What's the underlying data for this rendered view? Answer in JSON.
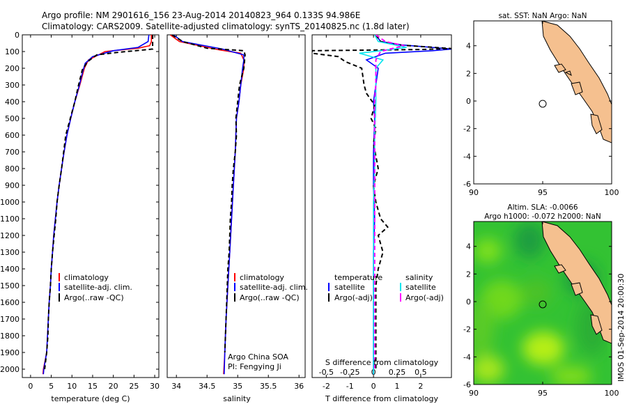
{
  "header": {
    "line1": "Argo profile: NM 2901616_156 23-Aug-2014 20140823_964 0.133S 94.986E",
    "line2": "Climatology: CARS2009. Satellite-adjusted climatology: synTS_20140825.nc (1.8d later)"
  },
  "colors": {
    "climatology": "#ff0000",
    "satellite": "#0000ff",
    "argo": "#000000",
    "satellite_s": "#00e5ee",
    "argo_s": "#ff00ff",
    "land": "#f5c08f"
  },
  "chart_data": [
    {
      "id": "temperature",
      "type": "line",
      "xlabel": "temperature (deg C)",
      "ylabel": "",
      "xlim": [
        -2,
        31
      ],
      "ylim": [
        2050,
        0
      ],
      "xticks": [
        0,
        5,
        10,
        15,
        20,
        25,
        30
      ],
      "yticks": [
        0,
        100,
        200,
        300,
        400,
        500,
        600,
        700,
        800,
        900,
        1000,
        1100,
        1200,
        1300,
        1400,
        1500,
        1600,
        1700,
        1800,
        1900,
        2000
      ],
      "legend": [
        "climatology",
        "satellite-adj. clim.",
        "Argo(..raw -QC)"
      ],
      "series": [
        {
          "name": "climatology",
          "color": "#ff0000",
          "dash": "",
          "points": [
            [
              29.2,
              0
            ],
            [
              29.2,
              40
            ],
            [
              28.8,
              65
            ],
            [
              26,
              80
            ],
            [
              18,
              100
            ],
            [
              14,
              150
            ],
            [
              13,
              200
            ],
            [
              11.9,
              300
            ],
            [
              10.7,
              400
            ],
            [
              9.7,
              500
            ],
            [
              8.8,
              600
            ],
            [
              8.1,
              700
            ],
            [
              7.5,
              800
            ],
            [
              6.9,
              900
            ],
            [
              6.4,
              1000
            ],
            [
              6,
              1100
            ],
            [
              5.6,
              1200
            ],
            [
              5.3,
              1300
            ],
            [
              5,
              1400
            ],
            [
              4.8,
              1500
            ],
            [
              4.5,
              1600
            ],
            [
              4.3,
              1700
            ],
            [
              4.1,
              1800
            ],
            [
              3.9,
              1900
            ],
            [
              3.1,
              2000
            ],
            [
              3,
              2030
            ]
          ]
        },
        {
          "name": "satellite-adj. clim.",
          "color": "#0000ff",
          "dash": "",
          "points": [
            [
              28.6,
              0
            ],
            [
              28.4,
              40
            ],
            [
              26,
              75
            ],
            [
              20,
              95
            ],
            [
              15,
              130
            ],
            [
              13.2,
              170
            ],
            [
              12.6,
              220
            ],
            [
              11.8,
              300
            ],
            [
              10.7,
              400
            ],
            [
              9.7,
              500
            ],
            [
              8.8,
              600
            ],
            [
              8.1,
              700
            ],
            [
              7.5,
              800
            ],
            [
              6.9,
              900
            ],
            [
              6.4,
              1000
            ],
            [
              6,
              1100
            ],
            [
              5.6,
              1200
            ],
            [
              5.3,
              1300
            ],
            [
              5,
              1400
            ],
            [
              4.8,
              1500
            ],
            [
              4.5,
              1600
            ],
            [
              4.3,
              1700
            ],
            [
              4.1,
              1800
            ],
            [
              3.9,
              1900
            ],
            [
              3.2,
              2000
            ],
            [
              3.1,
              2030
            ]
          ]
        },
        {
          "name": "Argo(..raw -QC)",
          "color": "#000000",
          "dash": "6,4",
          "points": [
            [
              29.5,
              0
            ],
            [
              29.5,
              85
            ],
            [
              27.5,
              90
            ],
            [
              21,
              105
            ],
            [
              16,
              120
            ],
            [
              13.8,
              160
            ],
            [
              12.5,
              210
            ],
            [
              11.6,
              300
            ],
            [
              10.7,
              400
            ],
            [
              9.6,
              500
            ],
            [
              8.5,
              600
            ],
            [
              8,
              700
            ],
            [
              7.5,
              800
            ],
            [
              6.9,
              900
            ],
            [
              6.4,
              1000
            ],
            [
              6.1,
              1100
            ],
            [
              5.7,
              1200
            ],
            [
              5.3,
              1300
            ],
            [
              5,
              1400
            ],
            [
              4.8,
              1500
            ],
            [
              4.5,
              1600
            ],
            [
              4.3,
              1700
            ],
            [
              4.2,
              1800
            ],
            [
              3.9,
              1900
            ],
            [
              3.4,
              2000
            ]
          ]
        }
      ]
    },
    {
      "id": "salinity",
      "type": "line",
      "xlabel": "salinity",
      "ylabel": "",
      "xlim": [
        33.85,
        36.1
      ],
      "ylim": [
        2050,
        0
      ],
      "xticks": [
        34,
        34.5,
        35,
        35.5,
        36
      ],
      "legend": [
        "climatology",
        "satellite-adj. clim.",
        "Argo(..raw -QC)"
      ],
      "series": [
        {
          "name": "climatology",
          "color": "#ff0000",
          "dash": "",
          "points": [
            [
              33.9,
              0
            ],
            [
              34.05,
              40
            ],
            [
              34.7,
              90
            ],
            [
              35.05,
              110
            ],
            [
              35.1,
              150
            ],
            [
              35.1,
              200
            ],
            [
              35.05,
              300
            ],
            [
              35.02,
              400
            ],
            [
              34.98,
              500
            ],
            [
              34.96,
              700
            ],
            [
              34.93,
              900
            ],
            [
              34.9,
              1100
            ],
            [
              34.87,
              1300
            ],
            [
              34.84,
              1500
            ],
            [
              34.81,
              1700
            ],
            [
              34.79,
              1900
            ],
            [
              34.77,
              2030
            ]
          ]
        },
        {
          "name": "satellite-adj. clim.",
          "color": "#0000ff",
          "dash": "",
          "points": [
            [
              33.95,
              0
            ],
            [
              34.1,
              40
            ],
            [
              34.75,
              85
            ],
            [
              35.1,
              120
            ],
            [
              35.1,
              150
            ],
            [
              35.08,
              200
            ],
            [
              35.05,
              300
            ],
            [
              35.02,
              400
            ],
            [
              34.98,
              500
            ],
            [
              34.96,
              700
            ],
            [
              34.93,
              900
            ],
            [
              34.9,
              1100
            ],
            [
              34.87,
              1300
            ],
            [
              34.84,
              1500
            ],
            [
              34.81,
              1700
            ],
            [
              34.79,
              1900
            ],
            [
              34.78,
              2030
            ]
          ]
        },
        {
          "name": "Argo(..raw -QC)",
          "color": "#000000",
          "dash": "6,4",
          "points": [
            [
              33.93,
              0
            ],
            [
              34.1,
              40
            ],
            [
              34.5,
              80
            ],
            [
              35.1,
              95
            ],
            [
              35.12,
              120
            ],
            [
              35.1,
              200
            ],
            [
              35.03,
              300
            ],
            [
              35,
              400
            ],
            [
              34.97,
              500
            ],
            [
              34.98,
              600
            ],
            [
              34.96,
              700
            ],
            [
              34.93,
              800
            ],
            [
              34.91,
              900
            ],
            [
              34.9,
              1000
            ],
            [
              34.88,
              1100
            ],
            [
              34.87,
              1200
            ],
            [
              34.86,
              1300
            ],
            [
              34.84,
              1400
            ],
            [
              34.83,
              1500
            ],
            [
              34.82,
              1600
            ],
            [
              34.81,
              1700
            ],
            [
              34.8,
              1800
            ],
            [
              34.79,
              1900
            ]
          ]
        }
      ]
    },
    {
      "id": "difference",
      "type": "line",
      "xlabel": "T difference from climatology",
      "xlabel_top": "S difference from climatology",
      "xlim": [
        -2.6,
        3.3
      ],
      "ylim": [
        2050,
        0
      ],
      "xticks": [
        -2,
        -1,
        0,
        1,
        2
      ],
      "xticks_s": [
        "-0.5",
        "-0.25",
        "0",
        "0.25",
        "0.5"
      ],
      "legend_titles": [
        "temperature",
        "salinity"
      ],
      "legend": [
        "satellite",
        "Argo(-adj)",
        "satellite",
        "Argo(-adj)"
      ],
      "series": [
        {
          "name": "temperature satellite",
          "color": "#0000ff",
          "dash": "",
          "points": [
            [
              0.1,
              0
            ],
            [
              0.3,
              40
            ],
            [
              1.2,
              60
            ],
            [
              3.3,
              85
            ],
            [
              2.5,
              95
            ],
            [
              0.5,
              110
            ],
            [
              -0.3,
              150
            ],
            [
              0.2,
              200
            ],
            [
              0.1,
              300
            ],
            [
              0,
              400
            ],
            [
              0.05,
              500
            ],
            [
              0,
              700
            ],
            [
              0,
              900
            ],
            [
              0.05,
              1100
            ],
            [
              0,
              1300
            ],
            [
              0,
              1500
            ],
            [
              0,
              1700
            ],
            [
              0,
              1900
            ],
            [
              0,
              2030
            ]
          ]
        },
        {
          "name": "temperature Argo(-adj)",
          "color": "#000000",
          "dash": "6,4",
          "points": [
            [
              0.1,
              0
            ],
            [
              0.3,
              40
            ],
            [
              1,
              60
            ],
            [
              3.3,
              82
            ],
            [
              2,
              88
            ],
            [
              -2.6,
              95
            ],
            [
              -2.6,
              110
            ],
            [
              -1.5,
              130
            ],
            [
              -1.2,
              160
            ],
            [
              -0.5,
              200
            ],
            [
              -0.4,
              300
            ],
            [
              -0.3,
              350
            ],
            [
              0.05,
              420
            ],
            [
              -0.1,
              500
            ],
            [
              0.1,
              560
            ],
            [
              0,
              650
            ],
            [
              0.2,
              800
            ],
            [
              0,
              900
            ],
            [
              0.1,
              1000
            ],
            [
              0.3,
              1100
            ],
            [
              0.6,
              1150
            ],
            [
              0.2,
              1200
            ],
            [
              0.4,
              1300
            ],
            [
              0.2,
              1400
            ],
            [
              0.1,
              1500
            ],
            [
              0.1,
              1700
            ],
            [
              0.1,
              1900
            ],
            [
              0.1,
              2000
            ]
          ]
        },
        {
          "name": "salinity satellite",
          "color": "#00e5ee",
          "dash": "",
          "points": [
            [
              0.05,
              0
            ],
            [
              0.2,
              40
            ],
            [
              1.4,
              75
            ],
            [
              0.3,
              95
            ],
            [
              -0.6,
              110
            ],
            [
              0.4,
              150
            ],
            [
              0.1,
              200
            ],
            [
              0.1,
              400
            ],
            [
              0.05,
              600
            ],
            [
              0.05,
              800
            ],
            [
              0,
              1000
            ],
            [
              0,
              1200
            ],
            [
              0,
              1400
            ],
            [
              0,
              1600
            ],
            [
              0,
              1800
            ],
            [
              0,
              2030
            ]
          ]
        },
        {
          "name": "salinity Argo(-adj)",
          "color": "#ff00ff",
          "dash": "6,4",
          "points": [
            [
              0.1,
              0
            ],
            [
              0.5,
              40
            ],
            [
              1.3,
              65
            ],
            [
              0.7,
              85
            ],
            [
              0.3,
              100
            ],
            [
              0.1,
              150
            ],
            [
              0.1,
              200
            ],
            [
              0.1,
              300
            ],
            [
              0.05,
              400
            ],
            [
              0.05,
              700
            ],
            [
              0.05,
              1000
            ],
            [
              0.05,
              1300
            ],
            [
              0.05,
              1600
            ],
            [
              0.05,
              1900
            ],
            [
              0.05,
              2000
            ]
          ]
        }
      ]
    }
  ],
  "annotations": {
    "institution": "Argo China SOA",
    "pi": "PI: Fengying Ji",
    "timestamp": "IMOS 01-Sep-2014 20:00:30"
  },
  "maps": [
    {
      "id": "sst-map",
      "title": "sat. SST: NaN Argo: NaN",
      "xticks": [
        90,
        95,
        100
      ],
      "yticks": [
        4,
        2,
        0,
        -2,
        -4,
        -6
      ],
      "xlim": [
        90,
        100
      ],
      "ylim": [
        -6,
        5.8
      ],
      "marker": [
        95,
        -0.2
      ]
    },
    {
      "id": "sla-map",
      "title": "Altim. SLA: -0.0066",
      "subtitle": "Argo h1000: -0.072 h2000: NaN",
      "xticks": [
        90,
        95,
        100
      ],
      "yticks": [
        4,
        2,
        0,
        -2,
        -4,
        -6
      ],
      "xlim": [
        90,
        100
      ],
      "ylim": [
        -6,
        5.8
      ],
      "marker": [
        95,
        -0.2
      ]
    }
  ]
}
